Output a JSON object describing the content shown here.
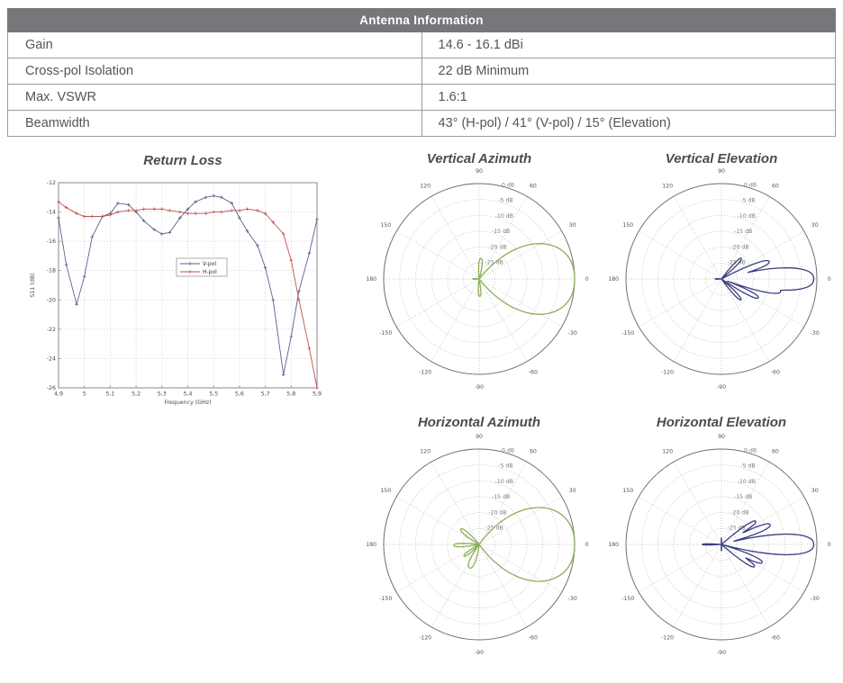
{
  "table": {
    "title": "Antenna Information",
    "rows": [
      {
        "label": "Gain",
        "value": "14.6 - 16.1 dBi"
      },
      {
        "label": "Cross-pol Isolation",
        "value": "22 dB Minimum"
      },
      {
        "label": "Max. VSWR",
        "value": "1.6:1"
      },
      {
        "label": "Beamwidth",
        "value": "43° (H-pol) / 41° (V-pol) / 15° (Elevation)"
      }
    ]
  },
  "colors": {
    "header_bg": "#76777a",
    "vpol_line": "#55628e",
    "hpol_line": "#c0504d",
    "azimuth_pattern_green": "#8aaf58",
    "elevation_pattern_navy": "#3a3f80",
    "grid": "#c9c9c9",
    "polar_grid": "#b3b3b3",
    "tick_text": "#4a4a4a"
  },
  "chart_data": [
    {
      "type": "line",
      "title": "Return Loss",
      "xlabel": "Frequency (GHz)",
      "ylabel": "S11 (dB)",
      "xlim": [
        4.9,
        5.9
      ],
      "ylim": [
        -26,
        -12
      ],
      "xtick_values": [
        4.9,
        5.0,
        5.1,
        5.2,
        5.3,
        5.4,
        5.5,
        5.6,
        5.7,
        5.8,
        5.9
      ],
      "xtick_labels": [
        "4,9",
        "5",
        "5,1",
        "5,2",
        "5,3",
        "5,4",
        "5,5",
        "5,6",
        "5,7",
        "5,8",
        "5,9"
      ],
      "ytick_values": [
        -12,
        -14,
        -16,
        -18,
        -20,
        -22,
        -24,
        -26
      ],
      "ytick_labels": [
        "-12",
        "-14",
        "-16",
        "-18",
        "-20",
        "-22",
        "-24",
        "-26"
      ],
      "grid": true,
      "legend_position": "center-left-box",
      "x": [
        4.9,
        4.93,
        4.97,
        5.0,
        5.03,
        5.07,
        5.1,
        5.13,
        5.17,
        5.2,
        5.23,
        5.27,
        5.3,
        5.33,
        5.37,
        5.4,
        5.43,
        5.47,
        5.5,
        5.53,
        5.57,
        5.6,
        5.63,
        5.67,
        5.7,
        5.73,
        5.77,
        5.8,
        5.83,
        5.87,
        5.9
      ],
      "series": [
        {
          "name": "V-pol",
          "color": "#55628e",
          "y": [
            -14.4,
            -17.6,
            -20.3,
            -18.4,
            -15.7,
            -14.3,
            -14.1,
            -13.4,
            -13.5,
            -14.0,
            -14.6,
            -15.2,
            -15.5,
            -15.4,
            -14.4,
            -13.8,
            -13.3,
            -13.0,
            -12.9,
            -13.0,
            -13.4,
            -14.4,
            -15.3,
            -16.3,
            -17.8,
            -20.0,
            -25.1,
            -22.5,
            -19.4,
            -16.8,
            -14.5
          ]
        },
        {
          "name": "H-pol",
          "color": "#c0504d",
          "y": [
            -13.3,
            -13.7,
            -14.1,
            -14.3,
            -14.3,
            -14.3,
            -14.2,
            -14.0,
            -13.9,
            -13.9,
            -13.8,
            -13.8,
            -13.8,
            -13.9,
            -14.0,
            -14.1,
            -14.1,
            -14.1,
            -14.0,
            -14.0,
            -13.9,
            -13.9,
            -13.8,
            -13.9,
            -14.1,
            -14.7,
            -15.5,
            -17.3,
            -20.0,
            -23.3,
            -26.0
          ]
        }
      ]
    },
    {
      "type": "polar",
      "title": "Vertical Azimuth",
      "color": "#8aaf58",
      "angle_labels": [
        0,
        30,
        60,
        90,
        120,
        150,
        180,
        -150,
        -120,
        -90,
        -60,
        -30
      ],
      "radial_ticks_db": [
        0,
        -5,
        -10,
        -15,
        -20,
        -25
      ],
      "radial_tick_labels": [
        "0 dB",
        "-5 dB",
        "-10 dB",
        "-15 dB",
        "-20 dB",
        "-25 dB"
      ],
      "rmin_db": -30,
      "lobes": [
        {
          "angle": 0,
          "peak_db": 0,
          "width_deg": 41
        },
        {
          "angle": 85,
          "peak_db": -23.5,
          "width_deg": 16
        },
        {
          "angle": -88,
          "peak_db": -24.5,
          "width_deg": 15
        },
        {
          "angle": 180,
          "peak_db": -28,
          "width_deg": 14
        }
      ]
    },
    {
      "type": "polar",
      "title": "Vertical Elevation",
      "color": "#3a3f80",
      "angle_labels": [
        0,
        30,
        60,
        90,
        120,
        150,
        180,
        -150,
        -120,
        -90,
        -60,
        -30
      ],
      "radial_ticks_db": [
        0,
        -5,
        -10,
        -15,
        -20,
        -25
      ],
      "radial_tick_labels": [
        "0 dB",
        "-5 dB",
        "-10 dB",
        "-15 dB",
        "-20 dB",
        "-25 dB"
      ],
      "rmin_db": -30,
      "lobes": [
        {
          "angle": 0,
          "peak_db": -1,
          "width_deg": 13
        },
        {
          "angle": -12,
          "peak_db": -11,
          "width_deg": 8
        },
        {
          "angle": 20,
          "peak_db": -14,
          "width_deg": 8
        },
        {
          "angle": 46,
          "peak_db": -21,
          "width_deg": 9
        },
        {
          "angle": -27,
          "peak_db": -17,
          "width_deg": 8
        },
        {
          "angle": -47,
          "peak_db": -21,
          "width_deg": 9
        },
        {
          "angle": 180,
          "peak_db": -28,
          "width_deg": 12
        }
      ]
    },
    {
      "type": "polar",
      "title": "Horizontal Azimuth",
      "color": "#8aaf58",
      "angle_labels": [
        0,
        30,
        60,
        90,
        120,
        150,
        180,
        -150,
        -120,
        -90,
        -60,
        -30
      ],
      "radial_ticks_db": [
        0,
        -5,
        -10,
        -15,
        -20,
        -25
      ],
      "radial_tick_labels": [
        "0 dB",
        "-5 dB",
        "-10 dB",
        "-15 dB",
        "-20 dB",
        "-25 dB"
      ],
      "rmin_db": -30,
      "lobes": [
        {
          "angle": 0,
          "peak_db": 0,
          "width_deg": 43
        },
        {
          "angle": 140,
          "peak_db": -22.5,
          "width_deg": 14
        },
        {
          "angle": 182,
          "peak_db": -22,
          "width_deg": 12
        },
        {
          "angle": -142,
          "peak_db": -24,
          "width_deg": 13
        },
        {
          "angle": -112,
          "peak_db": -22,
          "width_deg": 20
        }
      ]
    },
    {
      "type": "polar",
      "title": "Horizontal Elevation",
      "color": "#3a3f80",
      "angle_labels": [
        0,
        30,
        60,
        90,
        120,
        150,
        180,
        -150,
        -120,
        -90,
        -60,
        -30
      ],
      "radial_ticks_db": [
        0,
        -5,
        -10,
        -15,
        -20,
        -25
      ],
      "radial_tick_labels": [
        "0 dB",
        "-5 dB",
        "-10 dB",
        "-15 dB",
        "-20 dB",
        "-25 dB"
      ],
      "rmin_db": -30,
      "lobes": [
        {
          "angle": 0,
          "peak_db": -1,
          "width_deg": 12
        },
        {
          "angle": 22,
          "peak_db": -13.5,
          "width_deg": 8
        },
        {
          "angle": 34,
          "peak_db": -17,
          "width_deg": 8
        },
        {
          "angle": -24,
          "peak_db": -16,
          "width_deg": 8
        },
        {
          "angle": -34,
          "peak_db": -17.5,
          "width_deg": 8
        },
        {
          "angle": 180,
          "peak_db": -24,
          "width_deg": 6
        },
        {
          "angle": 90,
          "peak_db": -28,
          "width_deg": 8
        },
        {
          "angle": -90,
          "peak_db": -28,
          "width_deg": 8
        }
      ]
    }
  ]
}
